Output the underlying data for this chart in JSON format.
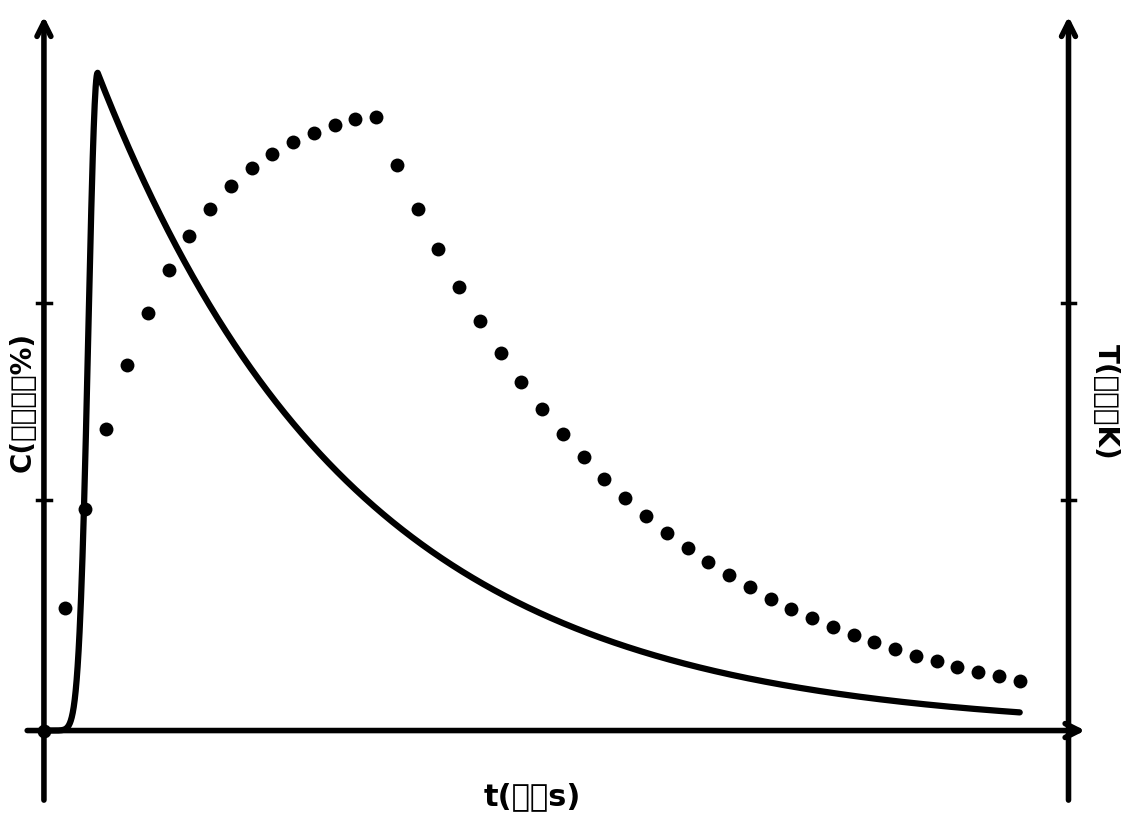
{
  "title": "",
  "xlabel": "t(时间s)",
  "ylabel_left": "C(氢气浓度%)",
  "ylabel_right": "T(升温度K)",
  "background_color": "#ffffff",
  "line_color": "#000000",
  "dot_color": "#000000",
  "xlabel_fontsize": 22,
  "ylabel_fontsize": 20,
  "axis_linewidth": 4.0,
  "solid_linewidth": 4.5,
  "dot_size": 100,
  "x_range": [
    0,
    10
  ],
  "y_range": [
    0,
    1
  ]
}
